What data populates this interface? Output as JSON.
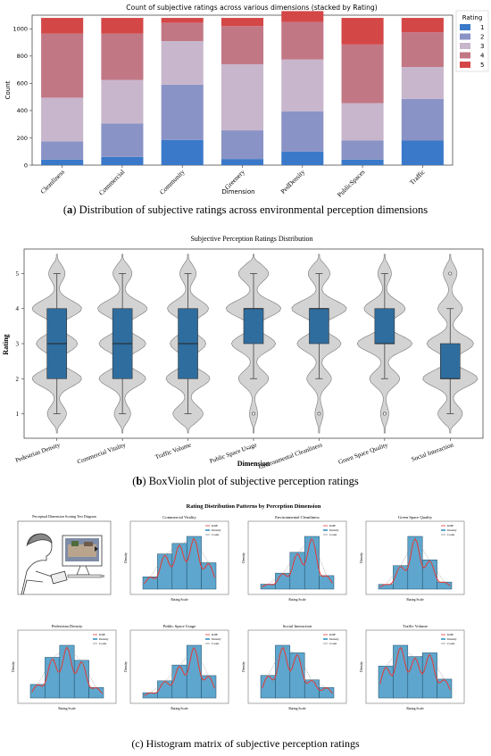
{
  "captions": {
    "a_letter": "a",
    "a_text": "Distribution of subjective ratings across environmental perception dimensions",
    "b_letter": "b",
    "b_text": "BoxViolin plot of subjective perception ratings",
    "c_text": "(c) Histogram matrix of subjective perception ratings"
  },
  "colors": {
    "r1": "#3a79c9",
    "r2": "#8a93c6",
    "r3": "#c8b6cc",
    "r4": "#c27785",
    "r5": "#d44747",
    "box": "#2f6d9e",
    "violin": "#d3d3d3",
    "hist": "#5ea6cd",
    "kde": "#e53935"
  },
  "chart_data": [
    {
      "type": "bar",
      "stacked": true,
      "title": "Count of subjective ratings across various dimensions (stacked by Rating)",
      "xlabel": "Dimension",
      "ylabel": "Count",
      "ylim": [
        0,
        1100
      ],
      "yticks": [
        0,
        200,
        400,
        600,
        800,
        1000
      ],
      "legend_title": "Rating",
      "legend_position": "top-right",
      "categories": [
        "Cleanliness",
        "Commercial",
        "Community",
        "Greenery",
        "PedDensity",
        "PublicSpaces",
        "Traffic"
      ],
      "series": [
        {
          "name": "1",
          "values": [
            40,
            60,
            185,
            45,
            100,
            40,
            180
          ]
        },
        {
          "name": "2",
          "values": [
            135,
            245,
            405,
            210,
            295,
            140,
            305
          ]
        },
        {
          "name": "3",
          "values": [
            320,
            320,
            320,
            485,
            380,
            275,
            235
          ]
        },
        {
          "name": "4",
          "values": [
            470,
            340,
            135,
            280,
            275,
            430,
            255
          ]
        },
        {
          "name": "5",
          "values": [
            115,
            115,
            35,
            60,
            80,
            195,
            105
          ]
        }
      ]
    },
    {
      "type": "violin",
      "title": "Subjective Perception Ratings Distribution",
      "xlabel": "Dimension",
      "ylabel": "Rating",
      "ylim": [
        0.3,
        5.7
      ],
      "yticks": [
        1,
        2,
        3,
        4,
        5
      ],
      "categories": [
        "Pedestrian Density",
        "Commercial Vitality",
        "Traffic Volume",
        "Public Space Usage",
        "Environmental Cleanliness",
        "Green Space Quality",
        "Social Interaction"
      ],
      "boxes": [
        {
          "q1": 2,
          "median": 3,
          "q3": 4,
          "whisker_low": 1,
          "whisker_high": 5,
          "outliers": []
        },
        {
          "q1": 2,
          "median": 3,
          "q3": 4,
          "whisker_low": 1,
          "whisker_high": 5,
          "outliers": []
        },
        {
          "q1": 2,
          "median": 3,
          "q3": 4,
          "whisker_low": 1,
          "whisker_high": 5,
          "outliers": []
        },
        {
          "q1": 3,
          "median": 4,
          "q3": 4,
          "whisker_low": 2,
          "whisker_high": 5,
          "outliers": [
            1
          ]
        },
        {
          "q1": 3,
          "median": 4,
          "q3": 4,
          "whisker_low": 2,
          "whisker_high": 5,
          "outliers": [
            1
          ]
        },
        {
          "q1": 3,
          "median": 3,
          "q3": 4,
          "whisker_low": 2,
          "whisker_high": 5,
          "outliers": [
            1
          ]
        },
        {
          "q1": 2,
          "median": 2,
          "q3": 3,
          "whisker_low": 1,
          "whisker_high": 4,
          "outliers": [
            5
          ]
        }
      ]
    },
    {
      "type": "bar",
      "subtype": "histogram-matrix",
      "title": "Rating Distribution Patterns by Perception Dimension",
      "diagram_title": "Perceptual Dimension Scoring Test Diagram",
      "xlabel": "Rating Scale",
      "ylabel": "Density",
      "legend": [
        "KDE",
        "Density",
        "Count"
      ],
      "panels": [
        {
          "title": "Commercial Vitality",
          "values": [
            0.07,
            0.2,
            0.26,
            0.3,
            0.15
          ]
        },
        {
          "title": "Environmental Cleanliness",
          "values": [
            0.04,
            0.13,
            0.3,
            0.43,
            0.11
          ]
        },
        {
          "title": "Green Space Quality",
          "values": [
            0.04,
            0.2,
            0.45,
            0.25,
            0.06
          ]
        },
        {
          "title": "Pedestrian Density",
          "values": [
            0.09,
            0.27,
            0.35,
            0.25,
            0.07
          ]
        },
        {
          "title": "Public Space Usage",
          "values": [
            0.04,
            0.13,
            0.25,
            0.4,
            0.17
          ]
        },
        {
          "title": "Social Interaction",
          "values": [
            0.15,
            0.35,
            0.3,
            0.12,
            0.07
          ]
        },
        {
          "title": "Traffic Volume",
          "values": [
            0.17,
            0.28,
            0.22,
            0.24,
            0.1
          ]
        }
      ]
    }
  ]
}
